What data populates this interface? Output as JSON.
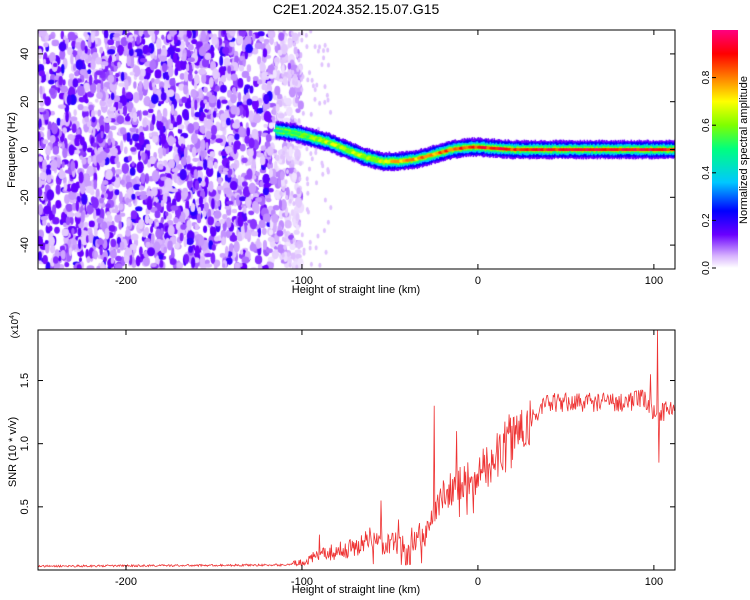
{
  "title": "C2E1.2024.352.15.07.G15",
  "chart_data": [
    {
      "type": "heatmap",
      "description_axis": "spectrogram",
      "xlabel": "Height of straight line (km)",
      "ylabel": "Frequency (Hz)",
      "xlim": [
        -250,
        112
      ],
      "ylim": [
        -50,
        50
      ],
      "x_ticks": [
        -200,
        -100,
        0,
        100
      ],
      "y_ticks": [
        -40,
        -20,
        0,
        20,
        40
      ],
      "x_tick_labels": [
        "-200",
        "-100",
        "0",
        "100"
      ],
      "y_tick_labels": [
        "-40",
        "-20",
        "0",
        "20",
        "40"
      ],
      "colorbar": {
        "label": "Normalized spectral amplitude",
        "range": [
          0,
          1
        ],
        "ticks": [
          0.0,
          0.2,
          0.4,
          0.6,
          0.8
        ],
        "tick_labels": [
          "0.0",
          "0.2",
          "0.4",
          "0.6",
          "0.8"
        ],
        "colors": [
          "#ffffff",
          "#d8b4fe",
          "#6a00ff",
          "#0000ff",
          "#00c8ff",
          "#00ff7f",
          "#7fff00",
          "#ffff00",
          "#ff8000",
          "#ff0000",
          "#ff0080"
        ]
      },
      "noise_region": {
        "x": [
          -250,
          -112
        ],
        "level": 0.15
      },
      "ridge": {
        "x": [
          -115,
          -105,
          -95,
          -85,
          -75,
          -65,
          -55,
          -45,
          -35,
          -25,
          -15,
          -5,
          0,
          20,
          50,
          80,
          112
        ],
        "y": [
          8,
          7,
          5,
          3,
          0,
          -3,
          -5,
          -5,
          -4,
          -2,
          0,
          1,
          1,
          0,
          0,
          0,
          0
        ],
        "peak_amplitude": [
          0.55,
          0.6,
          0.65,
          0.7,
          0.7,
          0.7,
          0.75,
          0.8,
          0.85,
          0.85,
          0.9,
          0.95,
          0.95,
          0.95,
          0.98,
          0.98,
          0.98
        ]
      }
    },
    {
      "type": "line",
      "xlabel": "Height of straight line (km)",
      "ylabel": "SNR (10 * v/v)",
      "y_multiplier": "(x10",
      "y_multiplier_exp": "4",
      "y_multiplier_close": ")",
      "xlim": [
        -250,
        112
      ],
      "ylim": [
        0,
        19000
      ],
      "x_ticks": [
        -200,
        -100,
        0,
        100
      ],
      "y_ticks": [
        5000,
        10000,
        15000
      ],
      "x_tick_labels": [
        "-200",
        "-100",
        "0",
        "100"
      ],
      "y_tick_labels": [
        "0.5",
        "1.0",
        "1.5"
      ],
      "series_color": "#ee3333",
      "trend": {
        "x": [
          -250,
          -110,
          -100,
          -90,
          -80,
          -70,
          -60,
          -50,
          -40,
          -30,
          -20,
          -10,
          0,
          10,
          20,
          30,
          40,
          60,
          80,
          95,
          100,
          105,
          112
        ],
        "y": [
          300,
          400,
          600,
          1200,
          1500,
          1800,
          2500,
          2000,
          2200,
          3000,
          6000,
          7000,
          7600,
          8800,
          10500,
          12000,
          13200,
          13300,
          13300,
          13500,
          12500,
          12500,
          13000
        ]
      },
      "spikes": [
        {
          "x": -90,
          "y": 2800
        },
        {
          "x": -55,
          "y": 5500
        },
        {
          "x": -45,
          "y": 4000
        },
        {
          "x": -25,
          "y": 13000
        },
        {
          "x": -12,
          "y": 11000
        },
        {
          "x": 98,
          "y": 15500
        },
        {
          "x": 102,
          "y": 19000
        },
        {
          "x": 103,
          "y": 8500
        }
      ]
    }
  ]
}
